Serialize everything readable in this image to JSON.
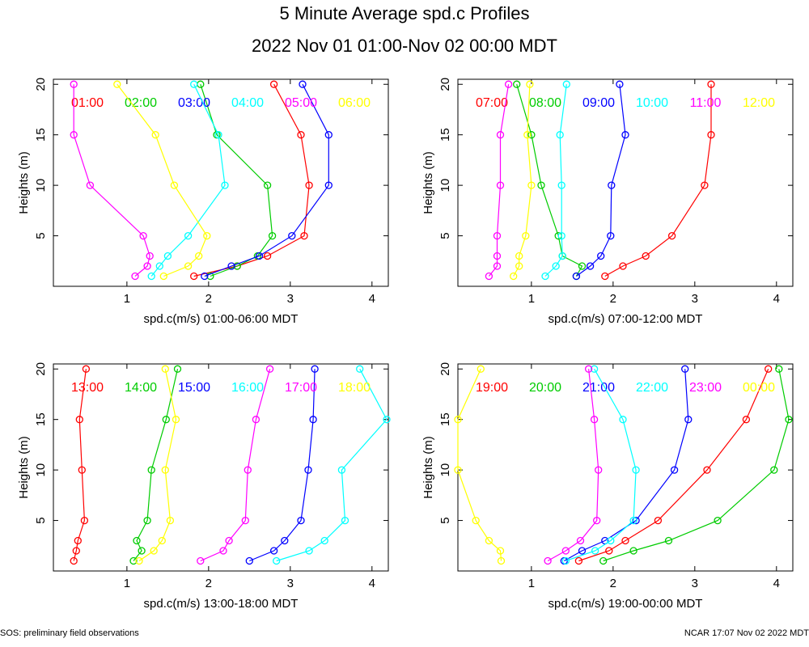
{
  "title": "5 Minute Average spd.c Profiles",
  "subtitle": "2022 Nov 01 01:00-Nov 02 00:00 MDT",
  "footer_left": "SOS: preliminary field observations",
  "footer_right": "NCAR 17:07 Nov 02 2022 MDT",
  "colors": [
    "#ff0000",
    "#00cc00",
    "#0000ff",
    "#00ffff",
    "#ff00ff",
    "#ffff00"
  ],
  "chart_data": [
    {
      "type": "line",
      "xlabel": "spd.c(m/s) 01:00-06:00 MDT",
      "ylabel": "Heights (m)",
      "xlim": [
        0.1,
        4.2
      ],
      "ylim": [
        0,
        20.5
      ],
      "xticks": [
        1,
        2,
        3,
        4
      ],
      "yticks": [
        5,
        10,
        15,
        20
      ],
      "heights": [
        1,
        2,
        3,
        5,
        10,
        15,
        20
      ],
      "series": [
        {
          "name": "01:00",
          "values": [
            1.82,
            2.35,
            2.72,
            3.17,
            3.23,
            3.13,
            2.8
          ]
        },
        {
          "name": "02:00",
          "values": [
            2.02,
            2.35,
            2.6,
            2.78,
            2.72,
            2.1,
            1.9
          ]
        },
        {
          "name": "03:00",
          "values": [
            1.95,
            2.28,
            2.62,
            3.02,
            3.47,
            3.47,
            3.15
          ]
        },
        {
          "name": "04:00",
          "values": [
            1.3,
            1.4,
            1.5,
            1.75,
            2.2,
            2.12,
            1.82
          ]
        },
        {
          "name": "05:00",
          "values": [
            1.1,
            1.25,
            1.28,
            1.2,
            0.55,
            0.35,
            0.35
          ]
        },
        {
          "name": "06:00",
          "values": [
            1.45,
            1.75,
            1.88,
            1.98,
            1.58,
            1.35,
            0.88
          ]
        }
      ]
    },
    {
      "type": "line",
      "xlabel": "spd.c(m/s) 07:00-12:00 MDT",
      "ylabel": "Heights (m)",
      "xlim": [
        0.1,
        4.2
      ],
      "ylim": [
        0,
        20.5
      ],
      "xticks": [
        1,
        2,
        3,
        4
      ],
      "yticks": [
        5,
        10,
        15,
        20
      ],
      "heights": [
        1,
        2,
        3,
        5,
        10,
        15,
        20
      ],
      "series": [
        {
          "name": "07:00",
          "values": [
            1.9,
            2.12,
            2.4,
            2.72,
            3.12,
            3.2,
            3.2
          ]
        },
        {
          "name": "08:00",
          "values": [
            1.55,
            1.62,
            1.38,
            1.33,
            1.12,
            1.0,
            0.82
          ]
        },
        {
          "name": "09:00",
          "values": [
            1.55,
            1.72,
            1.85,
            1.97,
            1.98,
            2.15,
            2.08
          ]
        },
        {
          "name": "10:00",
          "values": [
            1.17,
            1.3,
            1.38,
            1.37,
            1.37,
            1.35,
            1.43
          ]
        },
        {
          "name": "11:00",
          "values": [
            0.48,
            0.58,
            0.58,
            0.58,
            0.62,
            0.62,
            0.72
          ]
        },
        {
          "name": "12:00",
          "values": [
            0.78,
            0.85,
            0.85,
            0.93,
            1.0,
            0.95,
            0.98
          ]
        }
      ]
    },
    {
      "type": "line",
      "xlabel": "spd.c(m/s) 13:00-18:00 MDT",
      "ylabel": "Heights (m)",
      "xlim": [
        0.1,
        4.2
      ],
      "ylim": [
        0,
        20.5
      ],
      "xticks": [
        1,
        2,
        3,
        4
      ],
      "yticks": [
        5,
        10,
        15,
        20
      ],
      "heights": [
        1,
        2,
        3,
        5,
        10,
        15,
        20
      ],
      "series": [
        {
          "name": "13:00",
          "values": [
            0.35,
            0.38,
            0.4,
            0.48,
            0.45,
            0.42,
            0.5
          ]
        },
        {
          "name": "14:00",
          "values": [
            1.08,
            1.18,
            1.12,
            1.25,
            1.3,
            1.48,
            1.62
          ]
        },
        {
          "name": "15:00",
          "values": [
            2.5,
            2.8,
            2.93,
            3.13,
            3.22,
            3.28,
            3.3
          ]
        },
        {
          "name": "16:00",
          "values": [
            2.83,
            3.23,
            3.42,
            3.67,
            3.63,
            4.18,
            3.85
          ]
        },
        {
          "name": "17:00",
          "values": [
            1.9,
            2.18,
            2.25,
            2.45,
            2.48,
            2.58,
            2.75
          ]
        },
        {
          "name": "18:00",
          "values": [
            1.15,
            1.33,
            1.43,
            1.53,
            1.47,
            1.6,
            1.47
          ]
        }
      ]
    },
    {
      "type": "line",
      "xlabel": "spd.c(m/s) 19:00-00:00 MDT",
      "ylabel": "Heights (m)",
      "xlim": [
        0.1,
        4.2
      ],
      "ylim": [
        0,
        20.5
      ],
      "xticks": [
        1,
        2,
        3,
        4
      ],
      "yticks": [
        5,
        10,
        15,
        20
      ],
      "heights": [
        1,
        2,
        3,
        5,
        10,
        15,
        20
      ],
      "series": [
        {
          "name": "19:00",
          "values": [
            1.58,
            1.95,
            2.15,
            2.55,
            3.15,
            3.63,
            3.9
          ]
        },
        {
          "name": "20:00",
          "values": [
            1.88,
            2.25,
            2.68,
            3.28,
            3.97,
            4.15,
            4.03
          ]
        },
        {
          "name": "21:00",
          "values": [
            1.4,
            1.62,
            1.9,
            2.28,
            2.75,
            2.92,
            2.88
          ]
        },
        {
          "name": "22:00",
          "values": [
            1.42,
            1.78,
            1.97,
            2.25,
            2.28,
            2.12,
            1.77
          ]
        },
        {
          "name": "23:00",
          "values": [
            1.2,
            1.42,
            1.6,
            1.8,
            1.82,
            1.77,
            1.7
          ]
        },
        {
          "name": "00:00",
          "values": [
            0.63,
            0.62,
            0.48,
            0.32,
            0.1,
            0.1,
            0.38
          ]
        }
      ]
    }
  ]
}
